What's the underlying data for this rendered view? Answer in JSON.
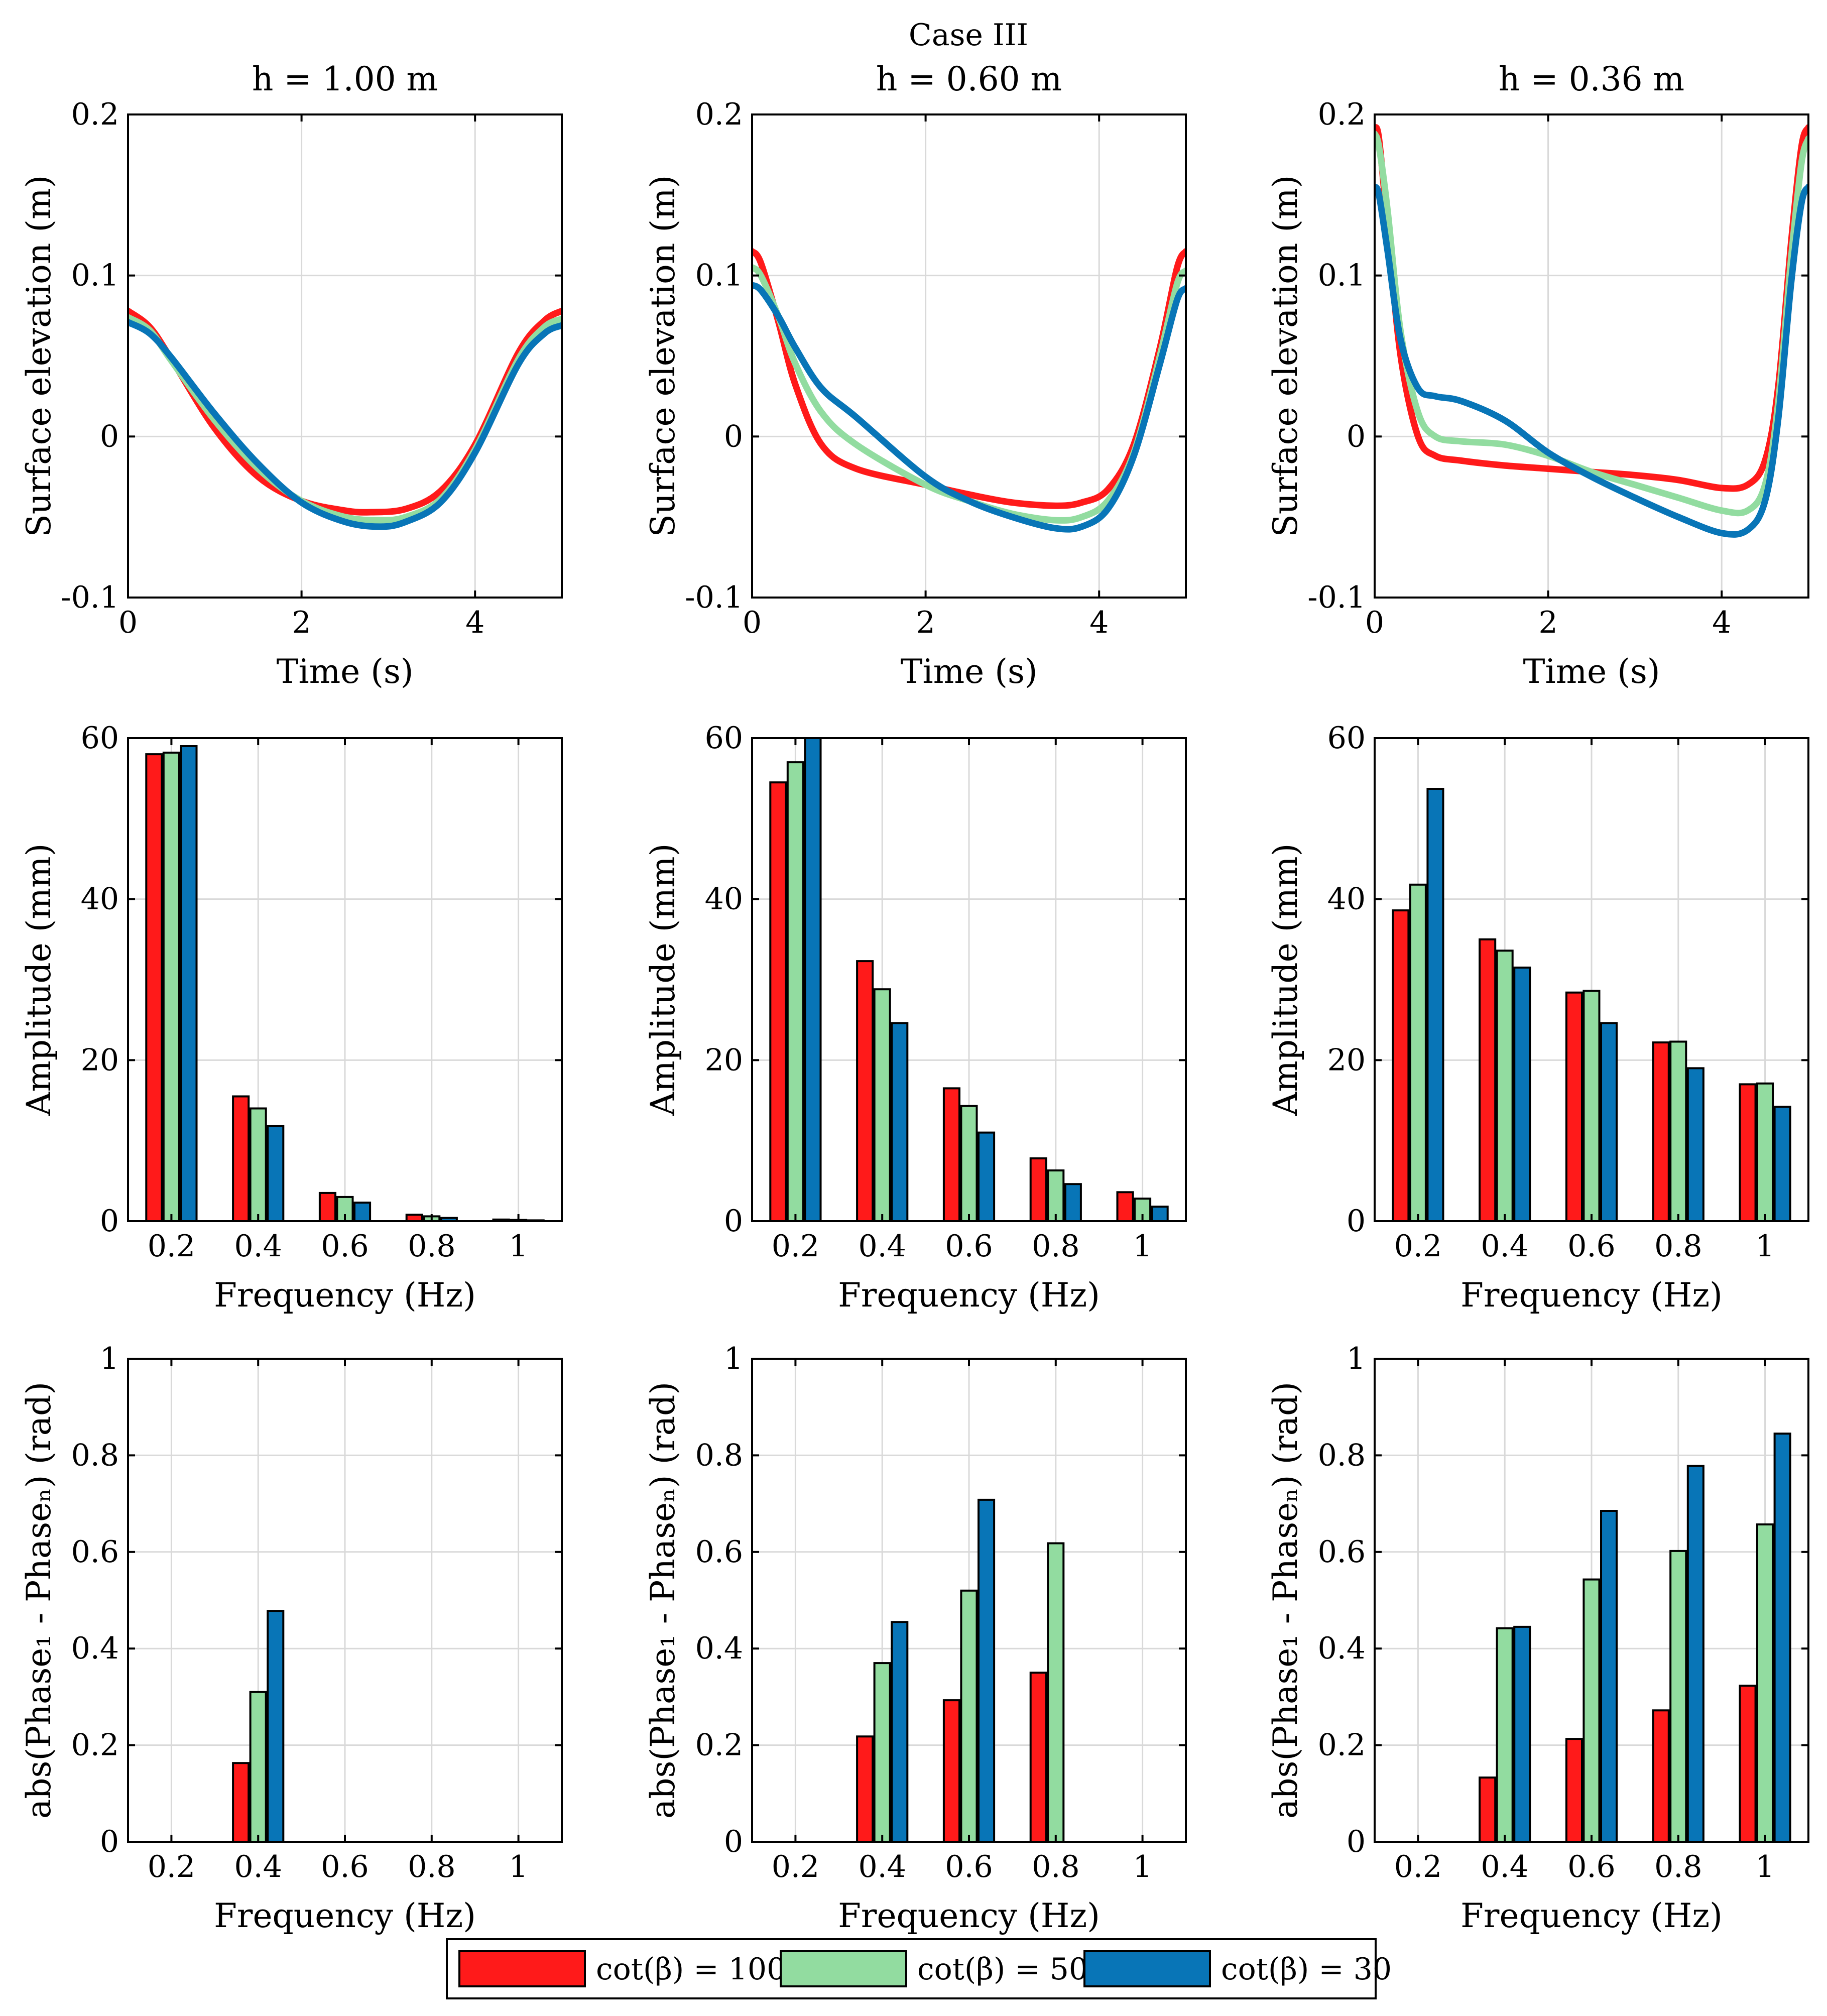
{
  "colors": {
    "cot100": "#ff1a1a",
    "cot50": "#92dca0",
    "cot30": "#0875b7",
    "grid": "#d9d9d9",
    "axis": "#000000"
  },
  "figure_title": "Case III",
  "legend": {
    "items": [
      {
        "key": "cot100",
        "label": "cot(β) = 100"
      },
      {
        "key": "cot50",
        "label": "cot(β) = 50"
      },
      {
        "key": "cot30",
        "label": "cot(β) = 30"
      }
    ]
  },
  "chart_data": [
    {
      "type": "line",
      "title": "h = 1.00 m",
      "xlabel": "Time (s)",
      "ylabel": "Surface elevation (m)",
      "xlim": [
        0,
        5
      ],
      "ylim": [
        -0.1,
        0.2
      ],
      "xticks": [
        0,
        2,
        4
      ],
      "xticklabels": [
        "0",
        "2",
        "4"
      ],
      "yticks": [
        -0.1,
        0,
        0.1,
        0.2
      ],
      "yticklabels": [
        "-0.1",
        "0",
        "0.1",
        "0.2"
      ],
      "series": [
        {
          "key": "cot100",
          "name": "cot(β) = 100",
          "x": [
            0,
            0.25,
            0.5,
            1,
            1.5,
            2,
            2.5,
            2.8,
            3.2,
            3.6,
            4,
            4.5,
            4.8,
            5
          ],
          "y": [
            0.078,
            0.068,
            0.048,
            0.005,
            -0.025,
            -0.04,
            -0.046,
            -0.047,
            -0.045,
            -0.034,
            -0.005,
            0.052,
            0.072,
            0.078
          ]
        },
        {
          "key": "cot50",
          "name": "cot(β) = 50",
          "x": [
            0,
            0.25,
            0.5,
            1,
            1.5,
            2,
            2.5,
            2.9,
            3.2,
            3.6,
            4,
            4.5,
            4.8,
            5
          ],
          "y": [
            0.074,
            0.066,
            0.047,
            0.01,
            -0.02,
            -0.04,
            -0.05,
            -0.052,
            -0.05,
            -0.039,
            -0.008,
            0.048,
            0.068,
            0.073
          ]
        },
        {
          "key": "cot30",
          "name": "cot(β) = 30",
          "x": [
            0,
            0.25,
            0.5,
            1,
            1.5,
            2,
            2.5,
            2.9,
            3.2,
            3.6,
            4,
            4.5,
            4.8,
            5
          ],
          "y": [
            0.071,
            0.064,
            0.049,
            0.014,
            -0.017,
            -0.041,
            -0.053,
            -0.056,
            -0.053,
            -0.041,
            -0.01,
            0.045,
            0.064,
            0.069
          ]
        }
      ]
    },
    {
      "type": "line",
      "title": "h = 0.60 m",
      "xlabel": "Time (s)",
      "ylabel": "Surface elevation (m)",
      "xlim": [
        0,
        5
      ],
      "ylim": [
        -0.1,
        0.2
      ],
      "xticks": [
        0,
        2,
        4
      ],
      "xticklabels": [
        "0",
        "2",
        "4"
      ],
      "yticks": [
        -0.1,
        0,
        0.1,
        0.2
      ],
      "yticklabels": [
        "-0.1",
        "0",
        "0.1",
        "0.2"
      ],
      "series": [
        {
          "key": "cot100",
          "name": "cot(β) = 100",
          "x": [
            0,
            0.1,
            0.3,
            0.5,
            0.8,
            1.2,
            2,
            2.5,
            3,
            3.5,
            3.8,
            4.1,
            4.4,
            4.7,
            4.9,
            5
          ],
          "y": [
            0.115,
            0.108,
            0.072,
            0.032,
            -0.005,
            -0.02,
            -0.03,
            -0.036,
            -0.041,
            -0.043,
            -0.041,
            -0.033,
            -0.005,
            0.055,
            0.105,
            0.115
          ]
        },
        {
          "key": "cot50",
          "name": "cot(β) = 50",
          "x": [
            0,
            0.1,
            0.3,
            0.5,
            0.8,
            1.2,
            2,
            2.5,
            3,
            3.5,
            3.8,
            4.1,
            4.4,
            4.7,
            4.9,
            5
          ],
          "y": [
            0.105,
            0.1,
            0.075,
            0.045,
            0.015,
            -0.005,
            -0.03,
            -0.04,
            -0.048,
            -0.052,
            -0.05,
            -0.04,
            -0.01,
            0.05,
            0.095,
            0.103
          ]
        },
        {
          "key": "cot30",
          "name": "cot(β) = 30",
          "x": [
            0,
            0.1,
            0.3,
            0.5,
            0.8,
            1.2,
            2,
            2.5,
            3,
            3.5,
            3.8,
            4.1,
            4.4,
            4.7,
            4.9,
            5
          ],
          "y": [
            0.094,
            0.091,
            0.075,
            0.055,
            0.03,
            0.012,
            -0.025,
            -0.04,
            -0.05,
            -0.057,
            -0.056,
            -0.045,
            -0.012,
            0.045,
            0.085,
            0.092
          ]
        }
      ]
    },
    {
      "type": "line",
      "title": "h = 0.36 m",
      "xlabel": "Time (s)",
      "ylabel": "Surface elevation (m)",
      "xlim": [
        0,
        5
      ],
      "ylim": [
        -0.1,
        0.2
      ],
      "xticks": [
        0,
        2,
        4
      ],
      "xticklabels": [
        "0",
        "2",
        "4"
      ],
      "yticks": [
        -0.1,
        0,
        0.1,
        0.2
      ],
      "yticklabels": [
        "-0.1",
        "0",
        "0.1",
        "0.2"
      ],
      "series": [
        {
          "key": "cot100",
          "name": "cot(β) = 100",
          "x": [
            0,
            0.05,
            0.15,
            0.3,
            0.5,
            0.7,
            1,
            1.5,
            2,
            2.5,
            3,
            3.5,
            4,
            4.3,
            4.5,
            4.65,
            4.8,
            4.92,
            5
          ],
          "y": [
            0.192,
            0.185,
            0.13,
            0.05,
            0.0,
            -0.012,
            -0.015,
            -0.018,
            -0.02,
            -0.022,
            -0.024,
            -0.027,
            -0.032,
            -0.03,
            -0.015,
            0.03,
            0.12,
            0.18,
            0.192
          ]
        },
        {
          "key": "cot50",
          "name": "cot(β) = 50",
          "x": [
            0,
            0.05,
            0.15,
            0.3,
            0.5,
            0.7,
            1,
            1.5,
            2,
            2.5,
            3,
            3.5,
            4,
            4.3,
            4.5,
            4.65,
            4.8,
            4.92,
            5
          ],
          "y": [
            0.188,
            0.18,
            0.14,
            0.065,
            0.015,
            0.0,
            -0.003,
            -0.005,
            -0.012,
            -0.022,
            -0.03,
            -0.038,
            -0.046,
            -0.046,
            -0.03,
            0.02,
            0.11,
            0.17,
            0.185
          ]
        },
        {
          "key": "cot30",
          "name": "cot(β) = 30",
          "x": [
            0,
            0.05,
            0.15,
            0.3,
            0.5,
            0.7,
            1,
            1.5,
            2,
            2.5,
            3,
            3.5,
            4,
            4.3,
            4.5,
            4.65,
            4.8,
            4.92,
            5
          ],
          "y": [
            0.155,
            0.15,
            0.115,
            0.06,
            0.03,
            0.025,
            0.022,
            0.01,
            -0.01,
            -0.025,
            -0.038,
            -0.05,
            -0.06,
            -0.058,
            -0.04,
            0.01,
            0.095,
            0.145,
            0.155
          ]
        }
      ]
    },
    {
      "type": "bar",
      "title": "",
      "xlabel": "Frequency (Hz)",
      "ylabel": "Amplitude (mm)",
      "xlim": [
        0.1,
        1.1
      ],
      "ylim": [
        0,
        60
      ],
      "xticks": [
        0.2,
        0.4,
        0.6,
        0.8,
        1
      ],
      "xticklabels": [
        "0.2",
        "0.4",
        "0.6",
        "0.8",
        "1"
      ],
      "yticks": [
        0,
        20,
        40,
        60
      ],
      "yticklabels": [
        "0",
        "20",
        "40",
        "60"
      ],
      "categories": [
        0.2,
        0.4,
        0.6,
        0.8,
        1.0
      ],
      "series": [
        {
          "key": "cot100",
          "name": "cot(β) = 100",
          "values": [
            58.0,
            15.5,
            3.5,
            0.8,
            0.2
          ]
        },
        {
          "key": "cot50",
          "name": "cot(β) = 50",
          "values": [
            58.2,
            14.0,
            3.0,
            0.6,
            0.15
          ]
        },
        {
          "key": "cot30",
          "name": "cot(β) = 30",
          "values": [
            59.0,
            11.8,
            2.3,
            0.4,
            0.1
          ]
        }
      ]
    },
    {
      "type": "bar",
      "title": "",
      "xlabel": "Frequency (Hz)",
      "ylabel": "Amplitude (mm)",
      "xlim": [
        0.1,
        1.1
      ],
      "ylim": [
        0,
        60
      ],
      "xticks": [
        0.2,
        0.4,
        0.6,
        0.8,
        1
      ],
      "xticklabels": [
        "0.2",
        "0.4",
        "0.6",
        "0.8",
        "1"
      ],
      "yticks": [
        0,
        20,
        40,
        60
      ],
      "yticklabels": [
        "0",
        "20",
        "40",
        "60"
      ],
      "categories": [
        0.2,
        0.4,
        0.6,
        0.8,
        1.0
      ],
      "series": [
        {
          "key": "cot100",
          "name": "cot(β) = 100",
          "values": [
            54.5,
            32.3,
            16.5,
            7.8,
            3.6
          ]
        },
        {
          "key": "cot50",
          "name": "cot(β) = 50",
          "values": [
            57.0,
            28.8,
            14.3,
            6.3,
            2.8
          ]
        },
        {
          "key": "cot30",
          "name": "cot(β) = 30",
          "values": [
            60.5,
            24.6,
            11.0,
            4.6,
            1.8
          ]
        }
      ]
    },
    {
      "type": "bar",
      "title": "",
      "xlabel": "Frequency (Hz)",
      "ylabel": "Amplitude (mm)",
      "xlim": [
        0.1,
        1.1
      ],
      "ylim": [
        0,
        60
      ],
      "xticks": [
        0.2,
        0.4,
        0.6,
        0.8,
        1
      ],
      "xticklabels": [
        "0.2",
        "0.4",
        "0.6",
        "0.8",
        "1"
      ],
      "yticks": [
        0,
        20,
        40,
        60
      ],
      "yticklabels": [
        "0",
        "20",
        "40",
        "60"
      ],
      "categories": [
        0.2,
        0.4,
        0.6,
        0.8,
        1.0
      ],
      "series": [
        {
          "key": "cot100",
          "name": "cot(β) = 100",
          "values": [
            38.6,
            35.0,
            28.4,
            22.2,
            17.0
          ]
        },
        {
          "key": "cot50",
          "name": "cot(β) = 50",
          "values": [
            41.8,
            33.6,
            28.6,
            22.3,
            17.1
          ]
        },
        {
          "key": "cot30",
          "name": "cot(β) = 30",
          "values": [
            53.7,
            31.5,
            24.6,
            19.0,
            14.2
          ]
        }
      ]
    },
    {
      "type": "bar",
      "title": "",
      "xlabel": "Frequency (Hz)",
      "ylabel": "abs(Phase₁ - Phaseₙ) (rad)",
      "xlim": [
        0.1,
        1.1
      ],
      "ylim": [
        0,
        1
      ],
      "xticks": [
        0.2,
        0.4,
        0.6,
        0.8,
        1
      ],
      "xticklabels": [
        "0.2",
        "0.4",
        "0.6",
        "0.8",
        "1"
      ],
      "yticks": [
        0,
        0.2,
        0.4,
        0.6,
        0.8,
        1
      ],
      "yticklabels": [
        "0",
        "0.2",
        "0.4",
        "0.6",
        "0.8",
        "1"
      ],
      "categories": [
        0.2,
        0.4,
        0.6,
        0.8,
        1.0
      ],
      "series": [
        {
          "key": "cot100",
          "name": "cot(β) = 100",
          "values": [
            0,
            0.163,
            0,
            0,
            0
          ]
        },
        {
          "key": "cot50",
          "name": "cot(β) = 50",
          "values": [
            0,
            0.31,
            0,
            0,
            0
          ]
        },
        {
          "key": "cot30",
          "name": "cot(β) = 30",
          "values": [
            0,
            0.478,
            0,
            0,
            0
          ]
        }
      ]
    },
    {
      "type": "bar",
      "title": "",
      "xlabel": "Frequency (Hz)",
      "ylabel": "abs(Phase₁ - Phaseₙ) (rad)",
      "xlim": [
        0.1,
        1.1
      ],
      "ylim": [
        0,
        1
      ],
      "xticks": [
        0.2,
        0.4,
        0.6,
        0.8,
        1
      ],
      "xticklabels": [
        "0.2",
        "0.4",
        "0.6",
        "0.8",
        "1"
      ],
      "yticks": [
        0,
        0.2,
        0.4,
        0.6,
        0.8,
        1
      ],
      "yticklabels": [
        "0",
        "0.2",
        "0.4",
        "0.6",
        "0.8",
        "1"
      ],
      "categories": [
        0.2,
        0.4,
        0.6,
        0.8,
        1.0
      ],
      "series": [
        {
          "key": "cot100",
          "name": "cot(β) = 100",
          "values": [
            0,
            0.218,
            0.293,
            0.35,
            0
          ]
        },
        {
          "key": "cot50",
          "name": "cot(β) = 50",
          "values": [
            0,
            0.37,
            0.52,
            0.618,
            0
          ]
        },
        {
          "key": "cot30",
          "name": "cot(β) = 30",
          "values": [
            0,
            0.455,
            0.708,
            0,
            0
          ]
        }
      ]
    },
    {
      "type": "bar",
      "title": "",
      "xlabel": "Frequency (Hz)",
      "ylabel": "abs(Phase₁ - Phaseₙ) (rad)",
      "xlim": [
        0.1,
        1.1
      ],
      "ylim": [
        0,
        1
      ],
      "xticks": [
        0.2,
        0.4,
        0.6,
        0.8,
        1
      ],
      "xticklabels": [
        "0.2",
        "0.4",
        "0.6",
        "0.8",
        "1"
      ],
      "yticks": [
        0,
        0.2,
        0.4,
        0.6,
        0.8,
        1
      ],
      "yticklabels": [
        "0",
        "0.2",
        "0.4",
        "0.6",
        "0.8",
        "1"
      ],
      "categories": [
        0.2,
        0.4,
        0.6,
        0.8,
        1.0
      ],
      "series": [
        {
          "key": "cot100",
          "name": "cot(β) = 100",
          "values": [
            0,
            0.133,
            0.213,
            0.272,
            0.323
          ]
        },
        {
          "key": "cot50",
          "name": "cot(β) = 50",
          "values": [
            0,
            0.442,
            0.543,
            0.602,
            0.657
          ]
        },
        {
          "key": "cot30",
          "name": "cot(β) = 30",
          "values": [
            0,
            0.445,
            0.685,
            0.778,
            0.845
          ]
        }
      ]
    }
  ]
}
